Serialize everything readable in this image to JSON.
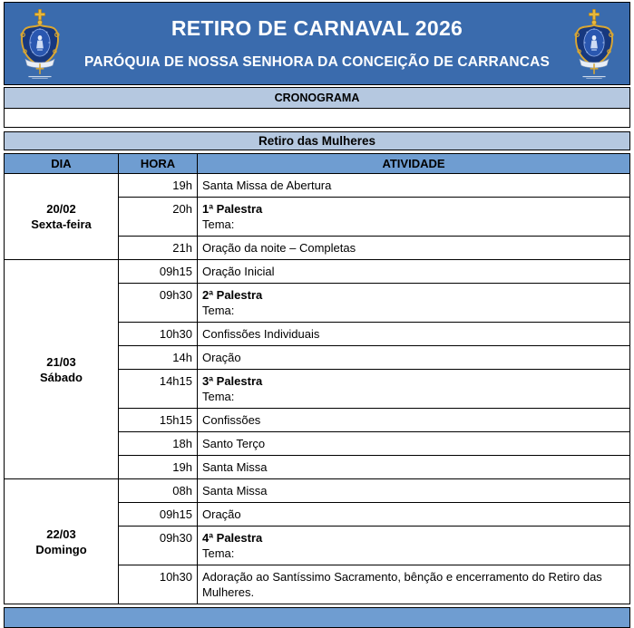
{
  "header": {
    "title": "RETIRO DE CARNAVAL 2026",
    "subtitle": "PARÓQUIA DE NOSSA SENHORA DA CONCEIÇÃO DE CARRANCAS"
  },
  "bands": {
    "cronograma": "CRONOGRAMA",
    "section": "Retiro das Mulheres"
  },
  "colors": {
    "header_bg": "#3a6bad",
    "band_light": "#b5c8e0",
    "band_medium": "#6f9dd1",
    "title_text": "#ffffff",
    "body_text": "#000000",
    "border": "#000000",
    "crest_navy": "#17387e",
    "crest_gold": "#d9a733"
  },
  "icons": {
    "left_logo": "parish-coat-of-arms",
    "right_logo": "parish-coat-of-arms"
  },
  "table": {
    "columns": [
      "DIA",
      "HORA",
      "ATIVIDADE"
    ],
    "days": [
      {
        "date": "20/02",
        "weekday": "Sexta-feira",
        "rows": [
          {
            "hora": "19h",
            "atividade": "Santa Missa de Abertura"
          },
          {
            "hora": "20h",
            "atividade_bold": "1ª Palestra",
            "atividade_sub": "Tema:"
          },
          {
            "hora": "21h",
            "atividade": "Oração da noite – Completas"
          }
        ]
      },
      {
        "date": "21/03",
        "weekday": "Sábado",
        "rows": [
          {
            "hora": "09h15",
            "atividade": "Oração Inicial"
          },
          {
            "hora": "09h30",
            "atividade_bold": "2ª Palestra",
            "atividade_sub": "Tema:"
          },
          {
            "hora": "10h30",
            "atividade": "Confissões Individuais"
          },
          {
            "hora": "14h",
            "atividade": "Oração"
          },
          {
            "hora": "14h15",
            "atividade_bold": "3ª Palestra",
            "atividade_sub": "Tema:"
          },
          {
            "hora": "15h15",
            "atividade": "Confissões"
          },
          {
            "hora": "18h",
            "atividade": "Santo Terço"
          },
          {
            "hora": "19h",
            "atividade": "Santa Missa"
          }
        ]
      },
      {
        "date": "22/03",
        "weekday": "Domingo",
        "rows": [
          {
            "hora": "08h",
            "atividade": "Santa Missa"
          },
          {
            "hora": "09h15",
            "atividade": "Oração"
          },
          {
            "hora": "09h30",
            "atividade_bold": "4ª Palestra",
            "atividade_sub": "Tema:"
          },
          {
            "hora": "10h30",
            "atividade": "Adoração ao Santíssimo Sacramento, bênção e encerramento do Retiro das Mulheres."
          }
        ]
      }
    ]
  }
}
